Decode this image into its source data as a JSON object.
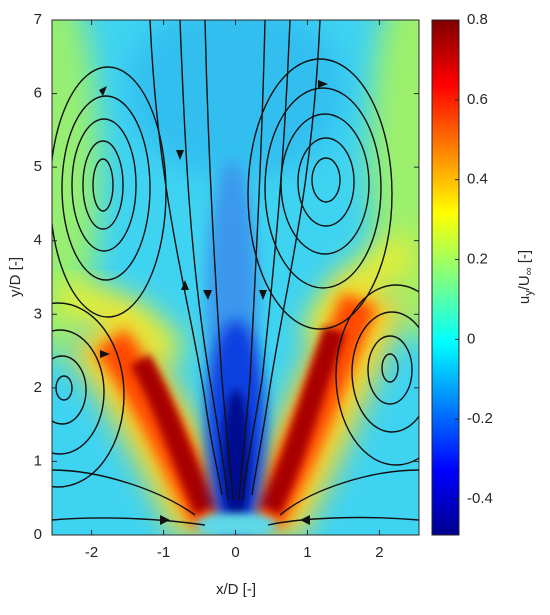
{
  "chart_data": {
    "type": "contour",
    "xlabel": "x/D [-]",
    "ylabel": "y/D [-]",
    "colorbar_label": [
      "u",
      "y",
      "/U",
      "∞",
      " [-]"
    ],
    "xlim": [
      -2.55,
      2.55
    ],
    "xticks": [
      -2,
      -1,
      0,
      1,
      2
    ],
    "ylim": [
      0,
      7
    ],
    "yticks": [
      0,
      1,
      2,
      3,
      4,
      5,
      6,
      7
    ],
    "clim": [
      -0.49,
      0.8
    ],
    "cticks": [
      -0.4,
      -0.2,
      0,
      0.2,
      0.4,
      0.6,
      0.8
    ],
    "colormap": "jet"
  }
}
